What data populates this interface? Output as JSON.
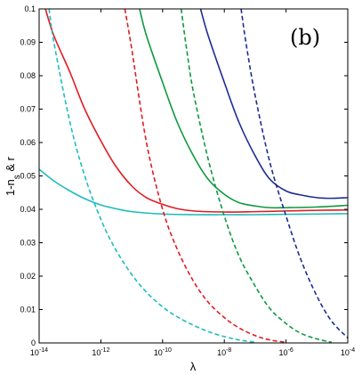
{
  "chart_data": {
    "type": "line",
    "panel_label": "(b)",
    "xlabel": "λ",
    "ylabel": "1-n_s & r",
    "xscale": "log",
    "xlim": [
      1e-14,
      0.0001
    ],
    "ylim": [
      0,
      0.1
    ],
    "x_ticks": [
      {
        "base": "10",
        "exp": "-14"
      },
      {
        "base": "10",
        "exp": "-12"
      },
      {
        "base": "10",
        "exp": "-10"
      },
      {
        "base": "10",
        "exp": "-8"
      },
      {
        "base": "10",
        "exp": "-6"
      },
      {
        "base": "10",
        "exp": "-4"
      }
    ],
    "y_ticks": [
      "0",
      "0.01",
      "0.02",
      "0.03",
      "0.04",
      "0.05",
      "0.06",
      "0.07",
      "0.08",
      "0.09",
      "0.1"
    ],
    "grid": false,
    "legend": "none",
    "series": [
      {
        "color": "#1fbcbc",
        "style": "solid",
        "x": [
          1e-14,
          3e-14,
          1e-13,
          3e-13,
          1e-12,
          3e-12,
          1e-11,
          1e-10,
          1e-09,
          1e-08,
          1e-07,
          1e-06,
          1e-05,
          0.0001
        ],
        "y": [
          0.052,
          0.0485,
          0.0455,
          0.0432,
          0.0413,
          0.0402,
          0.0393,
          0.0386,
          0.0384,
          0.0384,
          0.0384,
          0.0385,
          0.0386,
          0.0387
        ]
      },
      {
        "color": "#e01c22",
        "style": "solid",
        "x": [
          1.6e-14,
          3e-14,
          1e-13,
          3e-13,
          1e-12,
          3e-12,
          1e-11,
          3e-11,
          1e-10,
          3e-10,
          1e-09,
          1e-08,
          1e-07,
          1e-06,
          1e-05,
          0.0001
        ],
        "y": [
          0.1,
          0.092,
          0.081,
          0.07,
          0.0605,
          0.053,
          0.047,
          0.0435,
          0.0415,
          0.0402,
          0.0395,
          0.0392,
          0.0393,
          0.0395,
          0.0397,
          0.0398
        ]
      },
      {
        "color": "#0c9a3e",
        "style": "solid",
        "x": [
          1.8e-11,
          3e-11,
          1e-10,
          3e-10,
          1e-09,
          3e-09,
          1e-08,
          3e-08,
          1e-07,
          3e-07,
          1e-06,
          1e-05,
          0.0001
        ],
        "y": [
          0.1,
          0.092,
          0.078,
          0.066,
          0.056,
          0.049,
          0.0445,
          0.042,
          0.041,
          0.0405,
          0.0405,
          0.0407,
          0.0412
        ]
      },
      {
        "color": "#1c2c94",
        "style": "solid",
        "x": [
          1.7e-09,
          3e-09,
          1e-08,
          3e-08,
          1e-07,
          3e-07,
          1e-06,
          3e-06,
          1e-05,
          3e-05,
          0.0001
        ],
        "y": [
          0.1,
          0.092,
          0.078,
          0.066,
          0.056,
          0.049,
          0.0455,
          0.0443,
          0.0435,
          0.0433,
          0.0435
        ]
      },
      {
        "color": "#1fbcbc",
        "style": "dashed",
        "x": [
          2.1e-14,
          3e-14,
          1e-13,
          3e-13,
          1e-12,
          3e-12,
          1e-11,
          3e-11,
          1e-10,
          3e-10,
          1e-09,
          3e-09,
          1e-08,
          3e-08,
          1e-07
        ],
        "y": [
          0.1,
          0.09,
          0.066,
          0.05,
          0.037,
          0.028,
          0.0205,
          0.0152,
          0.0108,
          0.0078,
          0.0053,
          0.0034,
          0.0019,
          0.0009,
          0.0002
        ]
      },
      {
        "color": "#e01c22",
        "style": "dashed",
        "x": [
          6e-12,
          1e-11,
          3e-11,
          1e-10,
          3e-10,
          1e-09,
          3e-09,
          1e-08,
          3e-08,
          1e-07,
          3e-07,
          1e-06
        ],
        "y": [
          0.1,
          0.088,
          0.06,
          0.04,
          0.028,
          0.0185,
          0.0122,
          0.0076,
          0.0045,
          0.0022,
          0.0009,
          0.0002
        ]
      },
      {
        "color": "#0c9a3e",
        "style": "dashed",
        "x": [
          4e-10,
          6e-10,
          1e-09,
          3e-09,
          1e-08,
          3e-08,
          1e-07,
          3e-07,
          1e-06,
          3e-06,
          1e-05,
          3e-05
        ],
        "y": [
          0.1,
          0.088,
          0.075,
          0.055,
          0.038,
          0.026,
          0.017,
          0.0103,
          0.0058,
          0.0029,
          0.0012,
          0.0002
        ]
      },
      {
        "color": "#1c2c94",
        "style": "dashed",
        "x": [
          3.5e-08,
          5e-08,
          1e-07,
          3e-07,
          1e-06,
          3e-06,
          1e-05,
          3e-05,
          0.0001
        ],
        "y": [
          0.1,
          0.09,
          0.074,
          0.054,
          0.038,
          0.025,
          0.014,
          0.0065,
          0.0015
        ]
      }
    ]
  }
}
